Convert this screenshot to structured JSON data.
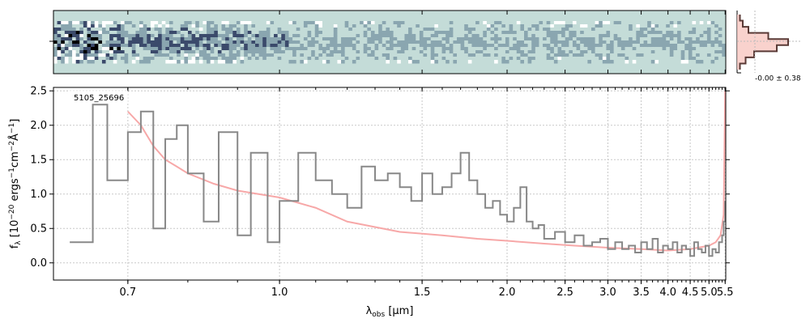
{
  "chart_data": {
    "type": "line",
    "object_label": "5105_25696",
    "xlabel": "λobs [µm]",
    "xlabel_parts": {
      "symbol": "λ",
      "sub": "obs",
      "unit": " [µm]"
    },
    "ylabel": "fλ [10−20 ergs−1cm−2Å−1]",
    "ylabel_parts": {
      "pre": "f",
      "sub": "λ",
      "mid1": " [10",
      "sup1": "−20",
      "mid2": " ergs",
      "sup2": "−1",
      "mid3": "cm",
      "sup3": "−2",
      "mid4": "Å",
      "sup4": "−1",
      "end": "]"
    },
    "x_axis": "reciprocal-ish wavelength scale",
    "xlim": [
      0.6,
      5.52
    ],
    "ylim": [
      -0.25,
      2.55
    ],
    "x_ticks": [
      0.7,
      1.0,
      1.5,
      2.0,
      2.5,
      3.0,
      3.5,
      4.0,
      4.5,
      5.0,
      5.5
    ],
    "x_tick_labels": [
      "0.7",
      "1.0",
      "1.5",
      "2.0",
      "2.5",
      "3.0",
      "3.5",
      "4.0",
      "4.5",
      "5.0",
      "5.5"
    ],
    "y_ticks": [
      0.0,
      0.5,
      1.0,
      1.5,
      2.0,
      2.5
    ],
    "y_tick_labels": [
      "0.0",
      "0.5",
      "1.0",
      "1.5",
      "2.0",
      "2.5"
    ],
    "grid": true,
    "series": [
      {
        "role": "flux",
        "color": "#888888",
        "x": [
          0.62,
          0.65,
          0.67,
          0.7,
          0.72,
          0.74,
          0.76,
          0.78,
          0.8,
          0.83,
          0.86,
          0.9,
          0.93,
          0.97,
          1.0,
          1.05,
          1.1,
          1.15,
          1.2,
          1.25,
          1.3,
          1.35,
          1.4,
          1.45,
          1.5,
          1.55,
          1.6,
          1.65,
          1.7,
          1.75,
          1.8,
          1.85,
          1.9,
          1.95,
          2.0,
          2.05,
          2.1,
          2.15,
          2.2,
          2.25,
          2.3,
          2.4,
          2.5,
          2.6,
          2.7,
          2.8,
          2.9,
          3.0,
          3.1,
          3.2,
          3.3,
          3.4,
          3.5,
          3.6,
          3.7,
          3.8,
          3.9,
          4.0,
          4.1,
          4.2,
          4.3,
          4.4,
          4.5,
          4.6,
          4.7,
          4.8,
          4.9,
          5.0,
          5.1,
          5.2,
          5.3,
          5.4,
          5.45,
          5.5
        ],
        "y": [
          0.3,
          2.3,
          1.2,
          1.9,
          2.2,
          0.5,
          1.8,
          2.0,
          1.3,
          0.6,
          1.9,
          0.4,
          1.6,
          0.3,
          0.9,
          1.6,
          1.2,
          1.0,
          0.8,
          1.4,
          1.2,
          1.3,
          1.1,
          0.9,
          1.3,
          1.0,
          1.1,
          1.3,
          1.6,
          1.2,
          1.0,
          0.8,
          0.9,
          0.7,
          0.6,
          0.8,
          1.1,
          0.6,
          0.5,
          0.55,
          0.35,
          0.45,
          0.3,
          0.4,
          0.25,
          0.3,
          0.35,
          0.2,
          0.3,
          0.2,
          0.25,
          0.15,
          0.3,
          0.2,
          0.35,
          0.15,
          0.25,
          0.2,
          0.3,
          0.15,
          0.25,
          0.2,
          0.1,
          0.3,
          0.2,
          0.15,
          0.25,
          0.1,
          0.2,
          0.15,
          0.3,
          0.4,
          0.6,
          0.9
        ]
      },
      {
        "role": "model",
        "color": "#f7a8a8",
        "x": [
          0.7,
          0.72,
          0.74,
          0.76,
          0.78,
          0.8,
          0.85,
          0.9,
          1.0,
          1.1,
          1.2,
          1.4,
          1.6,
          1.8,
          2.0,
          2.3,
          2.6,
          3.0,
          3.5,
          4.0,
          4.5,
          5.0,
          5.2,
          5.35,
          5.45,
          5.5
        ],
        "y": [
          2.2,
          2.0,
          1.7,
          1.5,
          1.4,
          1.3,
          1.15,
          1.05,
          0.95,
          0.8,
          0.6,
          0.45,
          0.4,
          0.35,
          0.32,
          0.28,
          0.25,
          0.22,
          0.2,
          0.18,
          0.2,
          0.25,
          0.3,
          0.4,
          0.7,
          2.5
        ]
      }
    ],
    "spectrum_2d": {
      "type": "heatmap",
      "colormap": [
        "#000000",
        "#3b4a6b",
        "#8aa6b0",
        "#c4dcd8",
        "#ffffff"
      ]
    },
    "side_histogram": {
      "type": "profile",
      "label": "-0.00 ± 0.38",
      "line_color": "#5a3a36",
      "fill_color": "#f8c7c0",
      "profile": [
        0.05,
        0.1,
        0.2,
        0.55,
        0.9,
        0.7,
        0.3,
        0.15,
        0.05
      ]
    }
  }
}
